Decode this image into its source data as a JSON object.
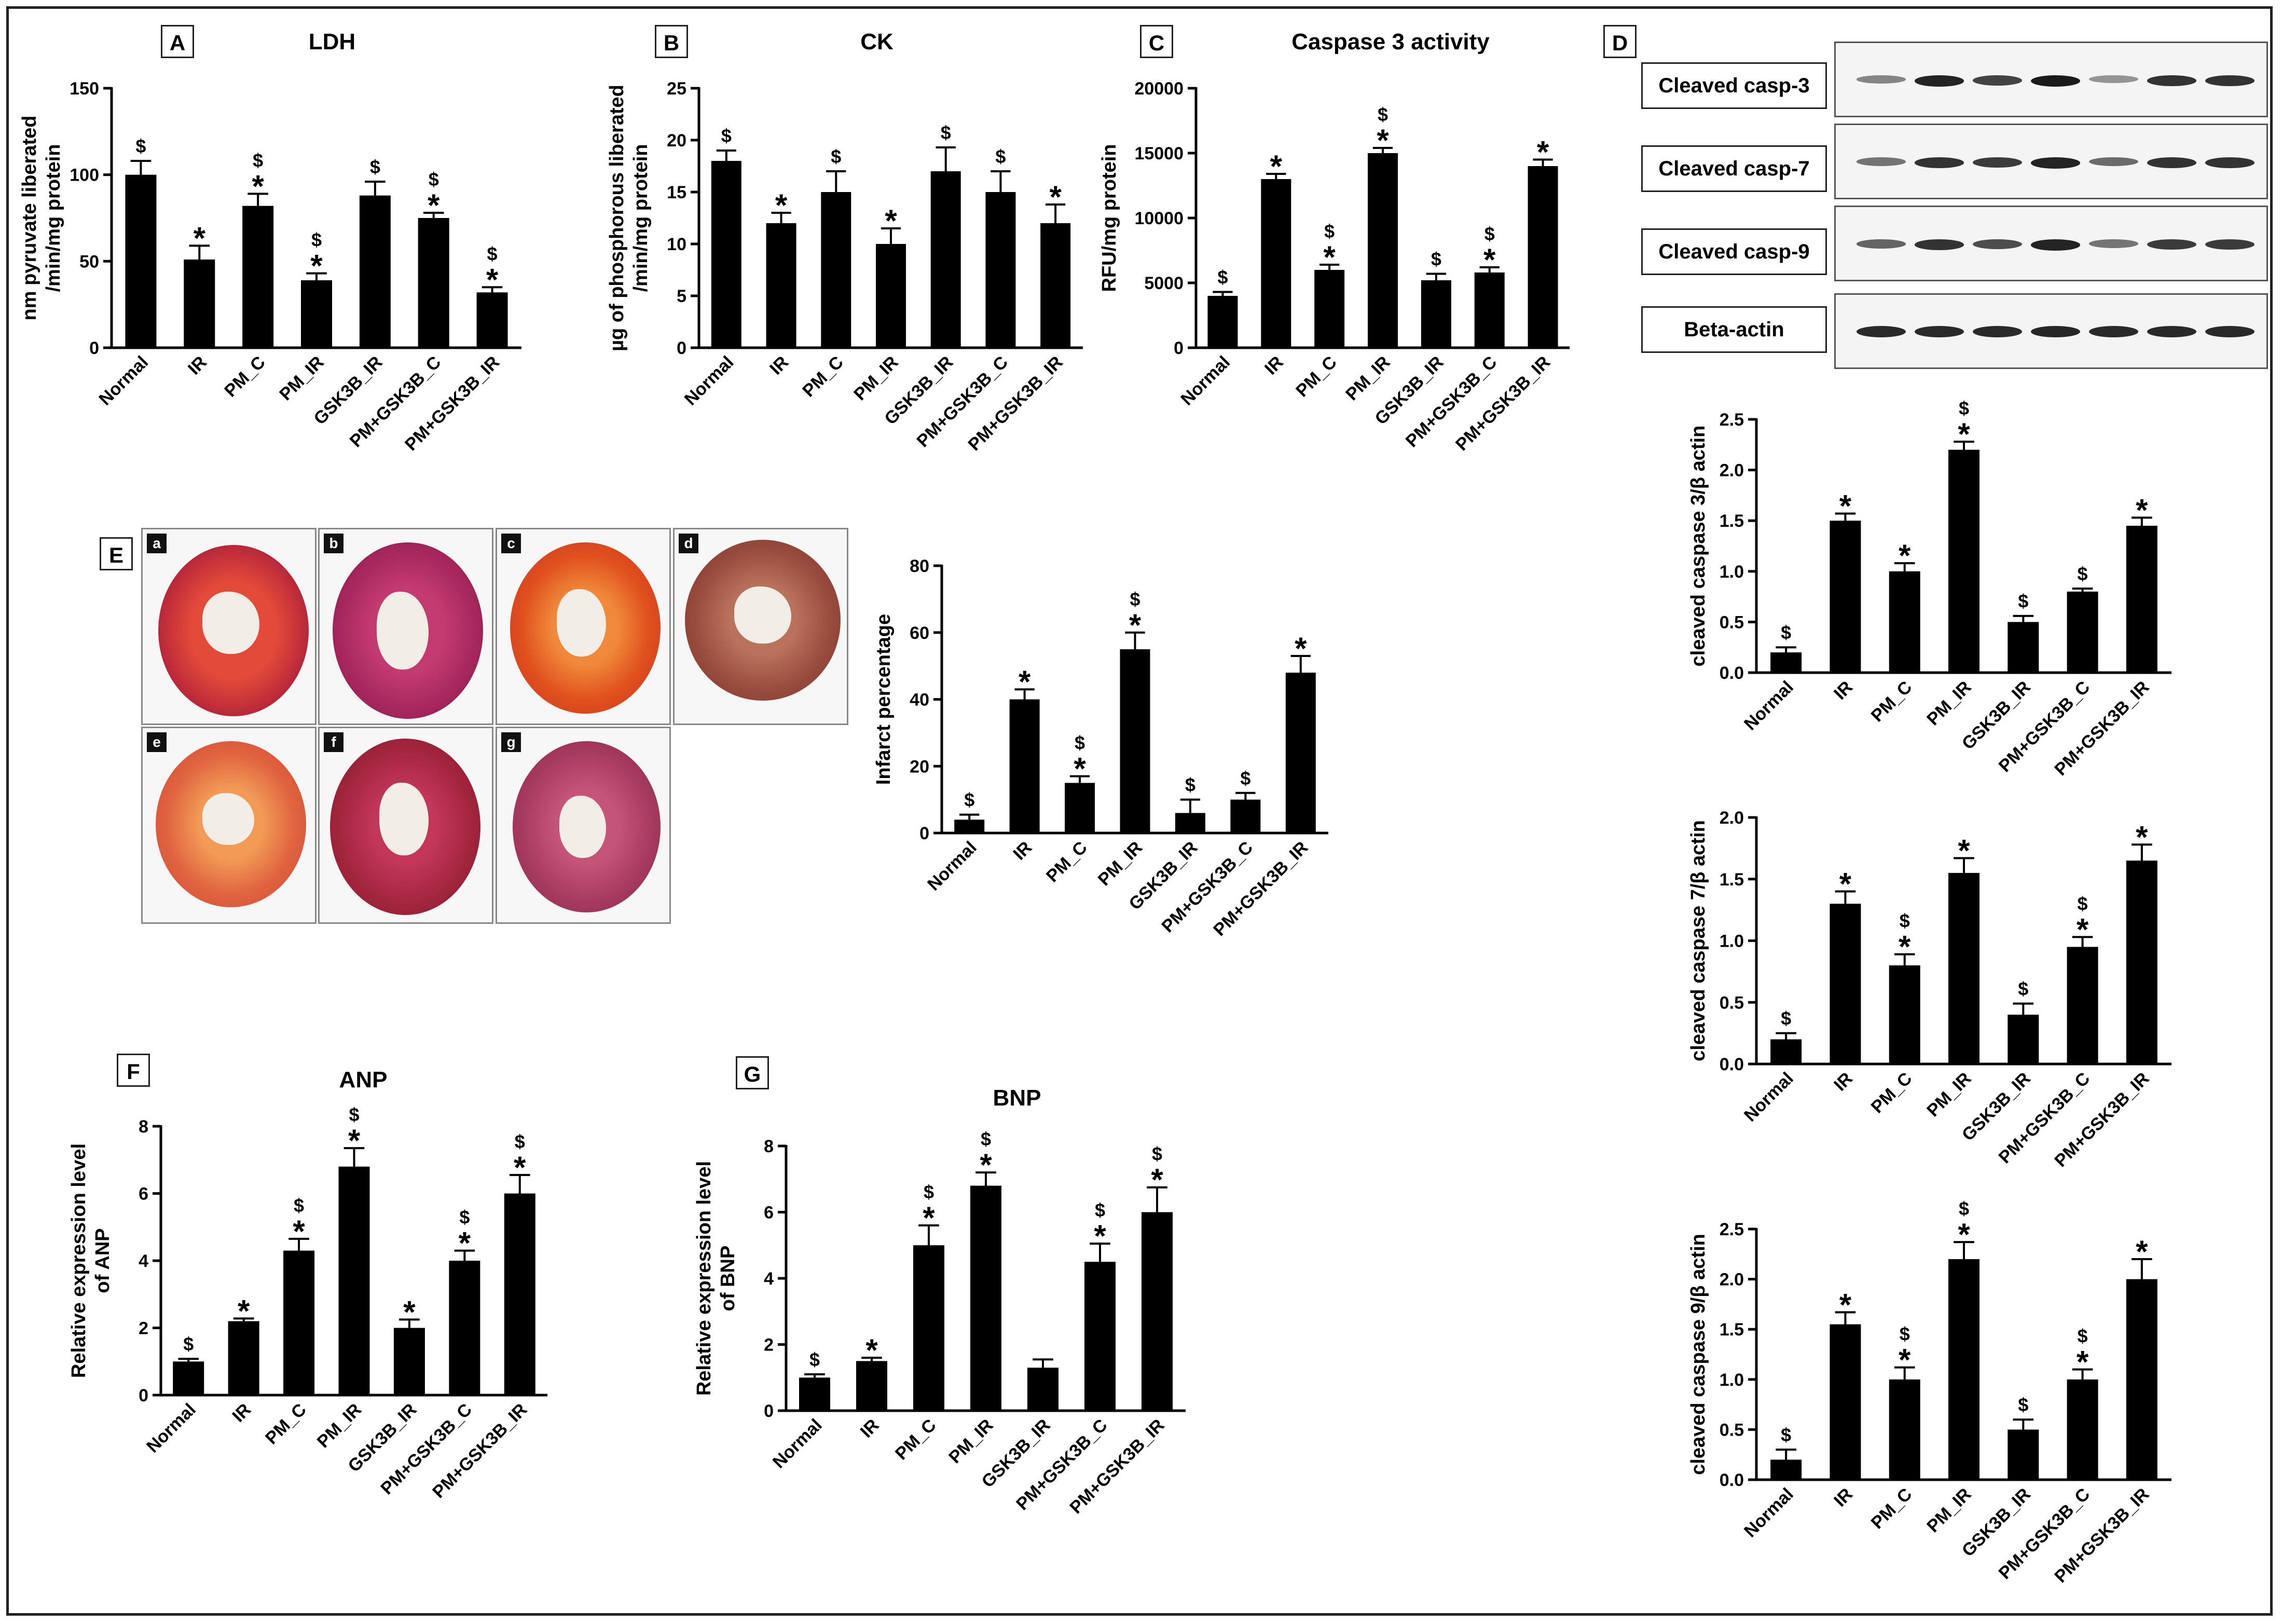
{
  "colors": {
    "bar": "#000000",
    "axis": "#000000",
    "frame": "#222222"
  },
  "panel_letters": [
    "A",
    "B",
    "C",
    "D",
    "E",
    "F",
    "G"
  ],
  "blot": {
    "labels": [
      "Cleaved casp-3",
      "Cleaved casp-7",
      "Cleaved casp-9",
      "Beta-actin"
    ]
  },
  "tissue_tags": [
    "a",
    "b",
    "c",
    "d",
    "e",
    "f",
    "g"
  ],
  "chart_data": [
    {
      "id": "A",
      "type": "bar",
      "title": "LDH",
      "ylabel": "nm pyruvate liberated\n/min/mg protein",
      "categories": [
        "Normal",
        "IR",
        "PM_C",
        "PM_IR",
        "GSK3B_IR",
        "PM+GSK3B_C",
        "PM+GSK3B_IR"
      ],
      "values": [
        100,
        51,
        82,
        39,
        88,
        75,
        32
      ],
      "errors": [
        8,
        8,
        7,
        4,
        8,
        3,
        3
      ],
      "annotations": [
        "$",
        "*",
        "$\n*",
        "$\n*",
        "$",
        "$\n*",
        "$\n*"
      ],
      "ylim": [
        0,
        150
      ],
      "yticks": [
        0,
        50,
        100,
        150
      ]
    },
    {
      "id": "B",
      "type": "bar",
      "title": "CK",
      "ylabel": "µg of phosphorous liberated\n/min/mg protein",
      "categories": [
        "Normal",
        "IR",
        "PM_C",
        "PM_IR",
        "GSK3B_IR",
        "PM+GSK3B_C",
        "PM+GSK3B_IR"
      ],
      "values": [
        18,
        12,
        15,
        10,
        17,
        15,
        12
      ],
      "errors": [
        1,
        1,
        2,
        1.5,
        2.3,
        2,
        1.8
      ],
      "annotations": [
        "$",
        "*",
        "$",
        "*",
        "$",
        "$",
        "*"
      ],
      "ylim": [
        0,
        25
      ],
      "yticks": [
        0,
        5,
        10,
        15,
        20,
        25
      ]
    },
    {
      "id": "C",
      "type": "bar",
      "title": "Caspase 3 activity",
      "ylabel": "RFU/mg protein",
      "categories": [
        "Normal",
        "IR",
        "PM_C",
        "PM_IR",
        "GSK3B_IR",
        "PM+GSK3B_C",
        "PM+GSK3B_IR"
      ],
      "values": [
        4000,
        13000,
        6000,
        15000,
        5200,
        5800,
        14000
      ],
      "errors": [
        300,
        400,
        400,
        400,
        500,
        400,
        500
      ],
      "annotations": [
        "$",
        "*",
        "$\n*",
        "$\n*",
        "$",
        "$\n*",
        "*"
      ],
      "ylim": [
        0,
        20000
      ],
      "yticks": [
        0,
        5000,
        10000,
        15000,
        20000
      ]
    },
    {
      "id": "E",
      "type": "bar",
      "title": "",
      "ylabel": "Infarct percentage",
      "categories": [
        "Normal",
        "IR",
        "PM_C",
        "PM_IR",
        "GSK3B_IR",
        "PM+GSK3B_C",
        "PM+GSK3B_IR"
      ],
      "values": [
        4,
        40,
        15,
        55,
        6,
        10,
        48
      ],
      "errors": [
        1.5,
        3,
        2,
        5,
        4,
        2,
        5
      ],
      "annotations": [
        "$",
        "*",
        "$\n*",
        "$\n*",
        "$",
        "$",
        "*"
      ],
      "ylim": [
        0,
        80
      ],
      "yticks": [
        0,
        20,
        40,
        60,
        80
      ]
    },
    {
      "id": "D1",
      "type": "bar",
      "title": "",
      "ylabel": "cleaved caspase 3/β actin",
      "categories": [
        "Normal",
        "IR",
        "PM_C",
        "PM_IR",
        "GSK3B_IR",
        "PM+GSK3B_C",
        "PM+GSK3B_IR"
      ],
      "values": [
        0.2,
        1.5,
        1.0,
        2.2,
        0.5,
        0.8,
        1.45
      ],
      "errors": [
        0.05,
        0.07,
        0.08,
        0.08,
        0.06,
        0.03,
        0.08
      ],
      "annotations": [
        "$",
        "*",
        "*",
        "$\n*",
        "$",
        "$",
        "*"
      ],
      "ylim": [
        0,
        2.5
      ],
      "yticks": [
        0,
        0.5,
        1.0,
        1.5,
        2.0,
        2.5
      ]
    },
    {
      "id": "D2",
      "type": "bar",
      "title": "",
      "ylabel": "cleaved caspase 7/β actin",
      "categories": [
        "Normal",
        "IR",
        "PM_C",
        "PM_IR",
        "GSK3B_IR",
        "PM+GSK3B_C",
        "PM+GSK3B_IR"
      ],
      "values": [
        0.2,
        1.3,
        0.8,
        1.55,
        0.4,
        0.95,
        1.65
      ],
      "errors": [
        0.05,
        0.1,
        0.09,
        0.12,
        0.09,
        0.08,
        0.13
      ],
      "annotations": [
        "$",
        "*",
        "$\n*",
        "*",
        "$",
        "$\n*",
        "*"
      ],
      "ylim": [
        0,
        2.0
      ],
      "yticks": [
        0,
        0.5,
        1.0,
        1.5,
        2.0
      ]
    },
    {
      "id": "D3",
      "type": "bar",
      "title": "",
      "ylabel": "cleaved caspase 9/β actin",
      "categories": [
        "Normal",
        "IR",
        "PM_C",
        "PM_IR",
        "GSK3B_IR",
        "PM+GSK3B_C",
        "PM+GSK3B_IR"
      ],
      "values": [
        0.2,
        1.55,
        1.0,
        2.2,
        0.5,
        1.0,
        2.0
      ],
      "errors": [
        0.1,
        0.12,
        0.12,
        0.17,
        0.1,
        0.1,
        0.2
      ],
      "annotations": [
        "$",
        "*",
        "$\n*",
        "$\n*",
        "$",
        "$\n*",
        "*"
      ],
      "ylim": [
        0,
        2.5
      ],
      "yticks": [
        0,
        0.5,
        1.0,
        1.5,
        2.0,
        2.5
      ]
    },
    {
      "id": "F",
      "type": "bar",
      "title": "ANP",
      "ylabel": "Relative expression level\nof ANP",
      "categories": [
        "Normal",
        "IR",
        "PM_C",
        "PM_IR",
        "GSK3B_IR",
        "PM+GSK3B_C",
        "PM+GSK3B_IR"
      ],
      "values": [
        1.0,
        2.2,
        4.3,
        6.8,
        2.0,
        4.0,
        6.0
      ],
      "errors": [
        0.08,
        0.08,
        0.35,
        0.55,
        0.25,
        0.3,
        0.55
      ],
      "annotations": [
        "$",
        "*",
        "$\n*",
        "$\n*",
        "*",
        "$\n*",
        "$\n*"
      ],
      "ylim": [
        0,
        8
      ],
      "yticks": [
        0,
        2,
        4,
        6,
        8
      ]
    },
    {
      "id": "G",
      "type": "bar",
      "title": "BNP",
      "ylabel": "Relative expression level\nof BNP",
      "categories": [
        "Normal",
        "IR",
        "PM_C",
        "PM_IR",
        "GSK3B_IR",
        "PM+GSK3B_C",
        "PM+GSK3B_IR"
      ],
      "values": [
        1.0,
        1.5,
        5.0,
        6.8,
        1.3,
        4.5,
        6.0
      ],
      "errors": [
        0.1,
        0.1,
        0.6,
        0.4,
        0.25,
        0.55,
        0.75
      ],
      "annotations": [
        "$",
        "*",
        "$\n*",
        "$\n*",
        "",
        "$\n*",
        "$\n*"
      ],
      "ylim": [
        0,
        8
      ],
      "yticks": [
        0,
        2,
        4,
        6,
        8
      ]
    }
  ]
}
